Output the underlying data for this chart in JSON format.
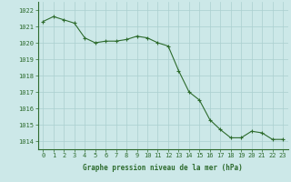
{
  "x": [
    0,
    1,
    2,
    3,
    4,
    5,
    6,
    7,
    8,
    9,
    10,
    11,
    12,
    13,
    14,
    15,
    16,
    17,
    18,
    19,
    20,
    21,
    22,
    23
  ],
  "y": [
    1021.3,
    1021.6,
    1021.4,
    1021.2,
    1020.3,
    1020.0,
    1020.1,
    1020.1,
    1020.2,
    1020.4,
    1020.3,
    1020.0,
    1019.8,
    1018.3,
    1017.0,
    1016.5,
    1015.3,
    1014.7,
    1014.2,
    1014.2,
    1014.6,
    1014.5,
    1014.1,
    1014.1
  ],
  "xlim": [
    -0.5,
    23.5
  ],
  "ylim": [
    1013.5,
    1022.5
  ],
  "yticks": [
    1014,
    1015,
    1016,
    1017,
    1018,
    1019,
    1020,
    1021,
    1022
  ],
  "xticks": [
    0,
    1,
    2,
    3,
    4,
    5,
    6,
    7,
    8,
    9,
    10,
    11,
    12,
    13,
    14,
    15,
    16,
    17,
    18,
    19,
    20,
    21,
    22,
    23
  ],
  "xlabel": "Graphe pression niveau de la mer (hPa)",
  "line_color": "#2d6b2d",
  "marker": "+",
  "bg_color": "#cce8e8",
  "grid_color": "#aacfcf",
  "tick_label_color": "#2d6b2d",
  "xlabel_color": "#2d6b2d",
  "xlabel_fontsize": 5.5,
  "tick_fontsize": 5.0,
  "linewidth": 0.8,
  "markersize": 3,
  "markeredgewidth": 0.8
}
